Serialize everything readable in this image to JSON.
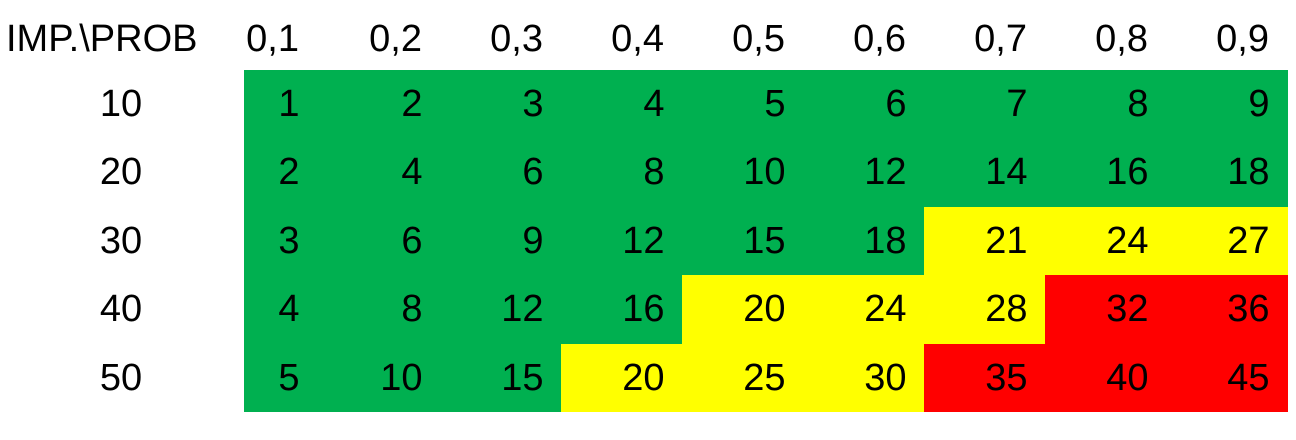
{
  "chart_data": {
    "type": "heatmap",
    "corner_label": "IMP.\\PROB",
    "x_labels": [
      "0,1",
      "0,2",
      "0,3",
      "0,4",
      "0,5",
      "0,6",
      "0,7",
      "0,8",
      "0,9"
    ],
    "y_labels": [
      "10",
      "20",
      "30",
      "40",
      "50"
    ],
    "values": [
      [
        1,
        2,
        3,
        4,
        5,
        6,
        7,
        8,
        9
      ],
      [
        2,
        4,
        6,
        8,
        10,
        12,
        14,
        16,
        18
      ],
      [
        3,
        6,
        9,
        12,
        15,
        18,
        21,
        24,
        27
      ],
      [
        4,
        8,
        12,
        16,
        20,
        24,
        28,
        32,
        36
      ],
      [
        5,
        10,
        15,
        20,
        25,
        30,
        35,
        40,
        45
      ]
    ],
    "risk_levels": [
      [
        "low",
        "low",
        "low",
        "low",
        "low",
        "low",
        "low",
        "low",
        "low"
      ],
      [
        "low",
        "low",
        "low",
        "low",
        "low",
        "low",
        "low",
        "low",
        "low"
      ],
      [
        "low",
        "low",
        "low",
        "low",
        "low",
        "low",
        "medium",
        "medium",
        "medium"
      ],
      [
        "low",
        "low",
        "low",
        "low",
        "medium",
        "medium",
        "medium",
        "high",
        "high"
      ],
      [
        "low",
        "low",
        "low",
        "medium",
        "medium",
        "medium",
        "high",
        "high",
        "high"
      ]
    ],
    "colors": {
      "low": "#00b050",
      "medium": "#ffff00",
      "high": "#ff0000"
    }
  }
}
